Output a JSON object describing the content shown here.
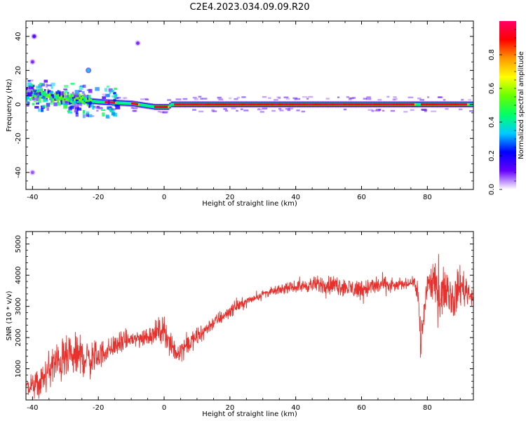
{
  "title": "C2E4.2023.034.09.09.R20",
  "chart_data": [
    {
      "type": "heatmap",
      "xlabel": "Height of straight line (km)",
      "ylabel": "Frequency (Hz)",
      "xlim": [
        -42,
        94
      ],
      "ylim": [
        -50,
        49
      ],
      "xticks": [
        -40,
        -20,
        0,
        20,
        40,
        60,
        80
      ],
      "yticks": [
        -40,
        -20,
        0,
        20,
        40
      ],
      "colorbar": {
        "label": "Normalized spectral amplitude",
        "range": [
          0,
          1
        ],
        "ticks": [
          "0.0",
          "0.2",
          "0.4",
          "0.6",
          "0.8"
        ],
        "colormap": [
          "#ffffff",
          "#6600ff",
          "#0000ff",
          "#00ccff",
          "#00ff66",
          "#66ff00",
          "#ffff00",
          "#ff9900",
          "#ff0000",
          "#ff0066"
        ]
      },
      "ridge": {
        "x_start": -42,
        "x_end": 94,
        "frequency_hz": [
          [
            -42,
            6
          ],
          [
            -35,
            5
          ],
          [
            -28,
            3
          ],
          [
            -20,
            1.5
          ],
          [
            -10,
            0.5
          ],
          [
            -3,
            -1.5
          ],
          [
            1,
            -1.5
          ],
          [
            2,
            0
          ],
          [
            94,
            0
          ]
        ],
        "max_amplitude_segments": [
          [
            -18,
            -15
          ],
          [
            -10,
            -8
          ],
          [
            -3,
            1
          ],
          [
            3,
            76
          ],
          [
            78,
            92
          ]
        ],
        "noisy_region": [
          -42,
          -22
        ]
      },
      "blobs": [
        {
          "x": -23,
          "y": 20,
          "amp": 0.35
        },
        {
          "x": -39.5,
          "y": 40,
          "amp": 0.15
        },
        {
          "x": -8,
          "y": 36,
          "amp": 0.1
        },
        {
          "x": -40,
          "y": 25,
          "amp": 0.1
        },
        {
          "x": -40,
          "y": -40,
          "amp": 0.08
        }
      ]
    },
    {
      "type": "line",
      "xlabel": "Height of straight line (km)",
      "ylabel": "SNR (10 * v/v)",
      "xlim": [
        -42,
        94
      ],
      "ylim": [
        0,
        5400
      ],
      "xticks": [
        -40,
        -20,
        0,
        20,
        40,
        60,
        80
      ],
      "yticks": [
        1000,
        2000,
        3000,
        4000,
        5000
      ],
      "series": [
        {
          "color": "#e8302c",
          "envelope": {
            "x": [
              -42,
              -38,
              -34,
              -30,
              -26,
              -22,
              -18,
              -14,
              -10,
              -6,
              -2,
              0,
              2,
              4,
              6,
              10,
              14,
              18,
              22,
              26,
              30,
              34,
              38,
              42,
              46,
              50,
              54,
              58,
              62,
              66,
              70,
              74,
              76,
              77,
              78,
              80,
              82,
              84,
              86,
              88,
              90,
              92,
              94
            ],
            "y": [
              400,
              500,
              1100,
              1300,
              1400,
              1300,
              1550,
              1800,
              1950,
              2000,
              2200,
              2300,
              1700,
              1500,
              1700,
              2000,
              2400,
              2700,
              3000,
              3200,
              3400,
              3500,
              3600,
              3650,
              3700,
              3700,
              3650,
              3550,
              3600,
              3700,
              3650,
              3750,
              3800,
              3600,
              1800,
              3800,
              3700,
              3400,
              3600,
              3200,
              3700,
              3500,
              3300
            ],
            "noise": [
              400,
              600,
              900,
              900,
              900,
              800,
              500,
              450,
              400,
              400,
              500,
              600,
              500,
              400,
              450,
              400,
              300,
              300,
              250,
              200,
              180,
              180,
              200,
              250,
              350,
              400,
              400,
              450,
              400,
              400,
              250,
              200,
              200,
              900,
              900,
              700,
              900,
              900,
              800,
              900,
              900,
              700,
              300
            ]
          }
        }
      ]
    }
  ]
}
